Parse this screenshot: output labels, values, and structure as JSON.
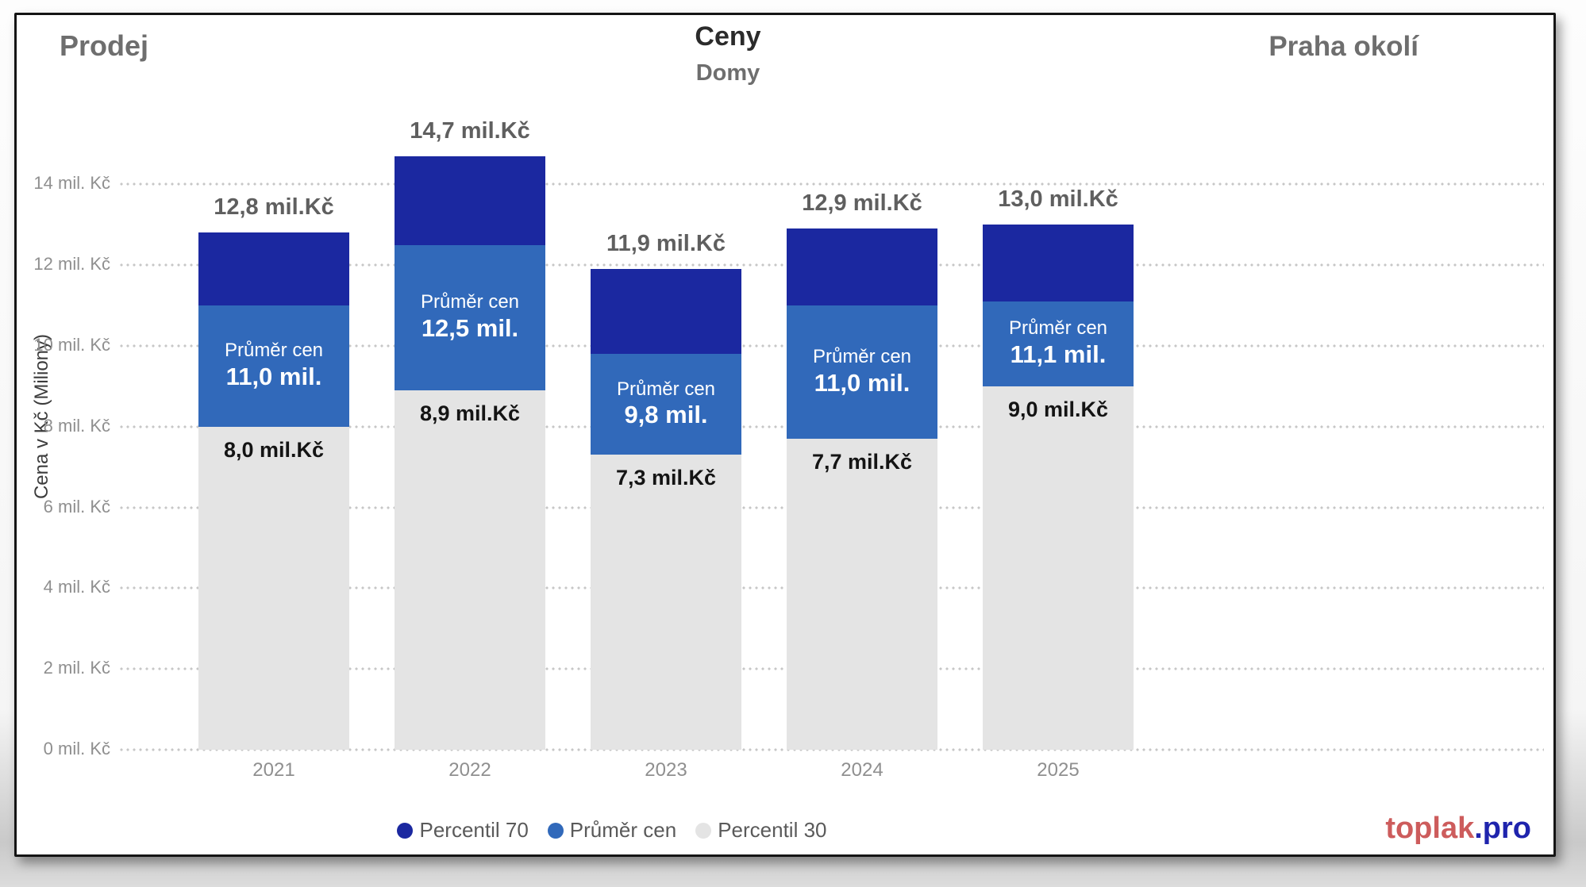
{
  "header": {
    "left_title": "Prodej",
    "center_title": "Ceny",
    "center_subtitle": "Domy",
    "right_title": "Praha okolí"
  },
  "y_axis": {
    "title": "Cena v Kč (Miliony)",
    "ticks": [
      "0 mil. Kč",
      "2 mil. Kč",
      "4 mil. Kč",
      "6 mil. Kč",
      "8 mil. Kč",
      "10 mil. Kč",
      "12 mil. Kč",
      "14 mil. Kč"
    ]
  },
  "x_axis": {
    "categories": [
      "2021",
      "2022",
      "2023",
      "2024",
      "2025"
    ]
  },
  "legend": {
    "items": [
      {
        "label": "Percentil 70",
        "color": "#1b28a0"
      },
      {
        "label": "Průměr cen",
        "color": "#3169ba"
      },
      {
        "label": "Percentil 30",
        "color": "#e4e4e4"
      }
    ]
  },
  "logo": {
    "primary": "toplak",
    "secondary": ".pro",
    "primary_color": "#cd5c5c",
    "secondary_color": "#1f24ad"
  },
  "chart_data": {
    "type": "bar",
    "subtype": "stacked-level-bands",
    "title": "Ceny",
    "subtitle": "Domy",
    "panel_left": "Prodej",
    "panel_right": "Praha okolí",
    "ylabel": "Cena v Kč (Miliony)",
    "unit": "mil. Kč",
    "ylim": [
      0,
      15.5
    ],
    "grid": "horizontal dotted lines every 2 mil. Kč",
    "legend_position": "bottom-center",
    "categories": [
      "2021",
      "2022",
      "2023",
      "2024",
      "2025"
    ],
    "series": [
      {
        "name": "Percentil 70",
        "color": "#1b28a0",
        "values": [
          12.8,
          14.7,
          11.9,
          12.9,
          13.0
        ]
      },
      {
        "name": "Průměr cen",
        "color": "#3169ba",
        "values": [
          11.0,
          12.5,
          9.8,
          11.0,
          11.1
        ]
      },
      {
        "name": "Percentil 30",
        "color": "#e4e4e4",
        "values": [
          8.0,
          8.9,
          7.3,
          7.7,
          9.0
        ]
      }
    ],
    "bar_labels": {
      "top": [
        "12,8 mil.Kč",
        "14,7 mil.Kč",
        "11,9 mil.Kč",
        "12,9 mil.Kč",
        "13,0 mil.Kč"
      ],
      "avg_title": "Průměr cen",
      "avg": [
        "11,0 mil.",
        "12,5 mil.",
        "9,8 mil.",
        "11,0 mil.",
        "11,1 mil."
      ],
      "p30": [
        "8,0 mil.Kč",
        "8,9 mil.Kč",
        "7,3 mil.Kč",
        "7,7 mil.Kč",
        "9,0 mil.Kč"
      ]
    }
  }
}
